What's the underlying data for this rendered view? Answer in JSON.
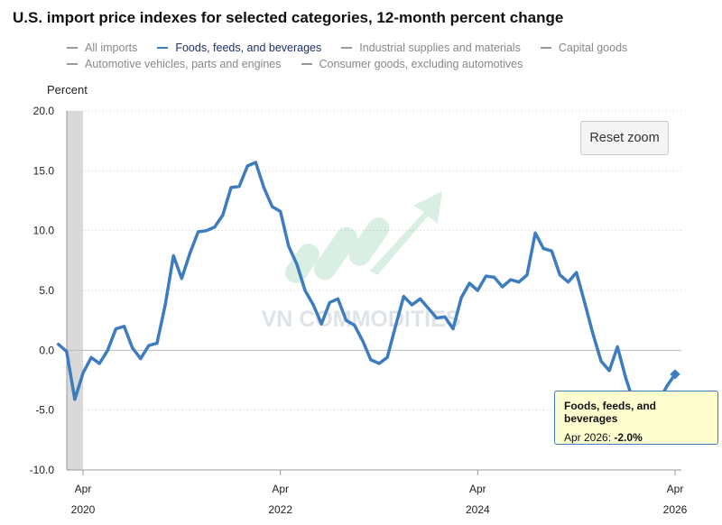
{
  "header": {
    "title": "U.S. import price indexes for selected categories, 12-month percent change"
  },
  "legend": {
    "rows": [
      [
        {
          "label": "All imports",
          "active": false
        },
        {
          "label": "Foods, feeds, and beverages",
          "active": true
        },
        {
          "label": "Industrial supplies and materials",
          "active": false
        },
        {
          "label": "Capital goods",
          "active": false
        }
      ],
      [
        {
          "label": "Automotive vehicles, parts and engines",
          "active": false
        },
        {
          "label": "Consumer goods, excluding automotives",
          "active": false
        }
      ]
    ]
  },
  "controls": {
    "reset_zoom_label": "Reset zoom"
  },
  "tooltip": {
    "series": "Foods, feeds, and beverages",
    "date": "Apr 2026:",
    "value": "-2.0%"
  },
  "watermark": "VN COMMODITIES",
  "colors": {
    "series_line": "#3d7dbf",
    "grid": "#c8c8c8",
    "recession_band": "#d9d9d9",
    "tooltip_bg": "#fdfdcf",
    "legend_inactive": "#888888",
    "legend_active": "#1f2f6b"
  },
  "chart_data": {
    "type": "line",
    "title": "U.S. import price indexes for selected categories, 12-month percent change",
    "ylabel": "Percent",
    "xlabel": "",
    "ylim": [
      -10,
      20
    ],
    "yticks": [
      -10,
      -5,
      0,
      5,
      10,
      15,
      20
    ],
    "ytick_labels": [
      "-10.0",
      "-5.0",
      "0.0",
      "5.0",
      "10.0",
      "15.0",
      "20.0"
    ],
    "xticks": [
      {
        "date": "2020-04",
        "month": "Apr",
        "year": "2020"
      },
      {
        "date": "2022-04",
        "month": "Apr",
        "year": "2022"
      },
      {
        "date": "2024-04",
        "month": "Apr",
        "year": "2024"
      },
      {
        "date": "2026-04",
        "month": "Apr",
        "year": "2026"
      }
    ],
    "x_range": [
      "2020-01",
      "2026-05"
    ],
    "grid": true,
    "shaded_period": [
      "2020-02",
      "2020-04"
    ],
    "series": [
      {
        "name": "Foods, feeds, and beverages",
        "x": [
          "2020-01",
          "2020-02",
          "2020-03",
          "2020-04",
          "2020-05",
          "2020-06",
          "2020-07",
          "2020-08",
          "2020-09",
          "2020-10",
          "2020-11",
          "2020-12",
          "2021-01",
          "2021-02",
          "2021-03",
          "2021-04",
          "2021-05",
          "2021-06",
          "2021-07",
          "2021-08",
          "2021-09",
          "2021-10",
          "2021-11",
          "2021-12",
          "2022-01",
          "2022-02",
          "2022-03",
          "2022-04",
          "2022-05",
          "2022-06",
          "2022-07",
          "2022-08",
          "2022-09",
          "2022-10",
          "2022-11",
          "2022-12",
          "2023-01",
          "2023-02",
          "2023-03",
          "2023-04",
          "2023-05",
          "2023-06",
          "2023-07",
          "2023-08",
          "2023-09",
          "2023-10",
          "2023-11",
          "2023-12",
          "2024-01",
          "2024-02",
          "2024-03",
          "2024-04",
          "2024-05",
          "2024-06",
          "2024-07",
          "2024-08",
          "2024-09",
          "2024-10",
          "2024-11",
          "2024-12",
          "2025-01",
          "2025-02",
          "2025-03",
          "2025-04",
          "2025-05",
          "2025-06",
          "2025-07",
          "2025-08",
          "2025-09",
          "2025-10",
          "2025-11",
          "2025-12",
          "2026-01",
          "2026-02",
          "2026-03",
          "2026-04"
        ],
        "values": [
          0.5,
          -0.1,
          -4.1,
          -1.9,
          -0.6,
          -1.1,
          0.0,
          1.8,
          2.0,
          0.2,
          -0.7,
          0.4,
          0.6,
          3.8,
          7.9,
          6.0,
          8.1,
          9.9,
          10.0,
          10.3,
          11.3,
          13.6,
          13.7,
          15.4,
          15.7,
          13.6,
          12.0,
          11.6,
          8.7,
          7.2,
          5.0,
          3.8,
          2.2,
          4.0,
          4.3,
          2.5,
          2.1,
          0.8,
          -0.8,
          -1.1,
          -0.6,
          2.0,
          4.5,
          3.8,
          4.3,
          3.5,
          2.7,
          2.8,
          1.8,
          4.4,
          5.6,
          5.0,
          6.2,
          6.1,
          5.3,
          5.9,
          5.7,
          6.3,
          9.8,
          8.5,
          8.3,
          6.3,
          5.7,
          6.5,
          4.0,
          1.4,
          -0.9,
          -1.7,
          0.3,
          -2.3,
          -4.4,
          -4.5,
          -4.4,
          -4.3,
          -3.0,
          -2.0
        ]
      }
    ]
  }
}
